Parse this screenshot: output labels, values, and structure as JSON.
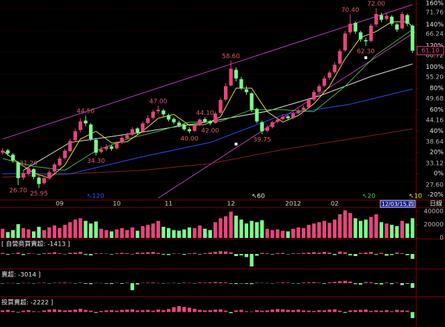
{
  "chart_data": [
    {
      "type": "candlestick",
      "categories": [
        null,
        null,
        null,
        null,
        null,
        null,
        null,
        null,
        null,
        null,
        null,
        "09",
        null,
        null,
        null,
        null,
        null,
        null,
        null,
        null,
        null,
        null,
        "10",
        null,
        null,
        null,
        null,
        null,
        null,
        null,
        null,
        null,
        "11",
        null,
        null,
        null,
        null,
        null,
        null,
        null,
        null,
        null,
        null,
        null,
        "12",
        null,
        null,
        null,
        null,
        null,
        null,
        null,
        null,
        null,
        null,
        null,
        "2012",
        null,
        null,
        null,
        null,
        null,
        null,
        null,
        "02",
        null,
        null,
        null,
        null,
        null,
        null,
        null,
        null,
        null,
        null,
        null,
        null,
        null,
        null,
        null
      ],
      "open": [
        35.0,
        35.6,
        34.5,
        32.5,
        28.6,
        29.6,
        30.8,
        28.6,
        27.2,
        28.4,
        30.2,
        31.8,
        33.6,
        35.4,
        38.2,
        40.8,
        43.2,
        42.2,
        38.3,
        35.2,
        35.9,
        36.6,
        36.1,
        37.6,
        38.7,
        39.6,
        41.2,
        40.4,
        42.6,
        43.9,
        45.6,
        45.8,
        44.6,
        43.6,
        42.7,
        42.2,
        41.0,
        40.6,
        42.1,
        43.6,
        43.0,
        42.6,
        45.2,
        48.6,
        52.2,
        56.2,
        53.8,
        51.2,
        50.2,
        46.2,
        42.8,
        40.6,
        41.6,
        42.9,
        43.6,
        44.3,
        43.9,
        45.1,
        45.9,
        46.6,
        48.6,
        50.6,
        52.1,
        54.2,
        55.6,
        57.8,
        61.2,
        65.8,
        68.2,
        65.8,
        63.8,
        63.6,
        67.8,
        70.2,
        69.2,
        69.8,
        67.8,
        66.8,
        70.2,
        67.5
      ],
      "high": [
        36.2,
        36.0,
        34.9,
        32.8,
        30.5,
        31.2,
        31.0,
        29.0,
        29.0,
        30.6,
        32.5,
        34.0,
        36.0,
        38.6,
        41.2,
        43.8,
        44.5,
        42.6,
        38.8,
        36.5,
        37.2,
        37.0,
        38.0,
        39.4,
        40.2,
        41.6,
        41.5,
        43.0,
        44.6,
        46.0,
        47.0,
        46.2,
        45.0,
        44.0,
        43.2,
        42.5,
        41.5,
        42.4,
        43.8,
        44.1,
        43.4,
        45.5,
        49.0,
        52.8,
        58.6,
        56.8,
        54.4,
        52.0,
        50.5,
        46.5,
        43.2,
        42.1,
        43.2,
        44.0,
        44.8,
        44.6,
        45.5,
        46.3,
        47.1,
        49.0,
        51.0,
        52.6,
        54.6,
        56.0,
        58.2,
        61.6,
        66.2,
        70.4,
        68.6,
        66.2,
        64.4,
        68.0,
        72.0,
        70.8,
        70.9,
        70.2,
        68.2,
        71.0,
        70.6,
        67.8
      ],
      "low": [
        34.5,
        34.2,
        32.4,
        26.7,
        28.0,
        29.2,
        28.2,
        25.95,
        26.8,
        28.0,
        29.8,
        31.5,
        33.2,
        35.0,
        37.8,
        40.2,
        41.8,
        38.0,
        34.3,
        34.8,
        35.4,
        35.5,
        35.8,
        37.2,
        38.3,
        39.2,
        39.6,
        40.1,
        42.1,
        43.5,
        45.0,
        44.2,
        43.0,
        42.3,
        41.5,
        40.6,
        40.0,
        40.3,
        41.8,
        42.6,
        42.0,
        42.4,
        45.0,
        48.2,
        52.0,
        53.2,
        51.0,
        49.8,
        45.4,
        42.5,
        39.75,
        40.2,
        41.2,
        42.5,
        43.2,
        43.3,
        43.6,
        44.8,
        45.4,
        46.3,
        48.2,
        50.2,
        51.8,
        53.6,
        55.2,
        57.4,
        60.8,
        65.2,
        65.4,
        63.4,
        62.3,
        63.2,
        67.2,
        68.4,
        68.8,
        67.5,
        65.9,
        66.5,
        67.4,
        60.5
      ],
      "close": [
        35.5,
        34.8,
        33.0,
        28.5,
        29.8,
        31.0,
        28.8,
        27.0,
        28.5,
        30.0,
        32.0,
        33.5,
        35.5,
        38.0,
        40.5,
        43.0,
        42.5,
        38.5,
        35.0,
        35.8,
        36.5,
        36.0,
        37.5,
        38.8,
        39.5,
        41.0,
        40.2,
        42.5,
        43.8,
        45.5,
        46.0,
        44.8,
        43.5,
        42.8,
        42.0,
        41.0,
        40.5,
        42.0,
        43.5,
        43.0,
        42.5,
        45.0,
        48.5,
        52.0,
        56.5,
        54.0,
        51.5,
        50.5,
        46.0,
        43.0,
        40.5,
        41.5,
        42.8,
        43.5,
        44.2,
        43.8,
        45.0,
        45.8,
        46.5,
        48.5,
        50.5,
        52.0,
        54.0,
        55.5,
        57.5,
        61.0,
        65.5,
        68.0,
        66.0,
        64.0,
        63.5,
        67.5,
        70.5,
        69.0,
        70.0,
        68.0,
        66.5,
        70.5,
        68.0,
        61.1
      ],
      "up_color": "#e8457a",
      "down_color": "#7cfc8c",
      "series": [
        {
          "name": "↖10",
          "color": "#e8e83a",
          "x": [
            0,
            3,
            6,
            9,
            12,
            15,
            18,
            21,
            24,
            27,
            30,
            33,
            36,
            39,
            42,
            45,
            48,
            51,
            54,
            57,
            60,
            63,
            66,
            69,
            72,
            75,
            78,
            79
          ],
          "values": [
            35.5,
            32.5,
            29.8,
            28.5,
            31.8,
            38.5,
            40.5,
            37.5,
            37.8,
            40.5,
            43.8,
            44.8,
            42.0,
            42.2,
            44.2,
            51.5,
            51.5,
            45.5,
            42.8,
            44.5,
            47.5,
            52.0,
            59.0,
            64.5,
            66.0,
            68.5,
            68.5,
            67.2
          ]
        },
        {
          "name": "↖20",
          "color": "#3cc83c",
          "x": [
            0,
            6,
            12,
            18,
            24,
            30,
            36,
            42,
            48,
            54,
            60,
            66,
            72,
            79
          ],
          "values": [
            33.5,
            31.5,
            30.5,
            35.5,
            38.5,
            40.5,
            42.8,
            43.0,
            46.0,
            46.0,
            45.5,
            52.0,
            60.0,
            66.5
          ]
        },
        {
          "name": "↖60",
          "color": "#e8e8e8",
          "x": [
            4,
            13,
            27,
            40,
            51,
            61,
            71,
            79
          ],
          "values": [
            30.5,
            37.6,
            40.3,
            43.0,
            45.6,
            49.5,
            54.5,
            57.7
          ]
        },
        {
          "name": "↖120",
          "color": "#2850ff",
          "x": [
            0,
            13,
            27,
            40,
            54,
            67,
            79
          ],
          "values": [
            29.6,
            29.6,
            34.0,
            37.6,
            44.7,
            47.4,
            51.3
          ]
        },
        {
          "color": "#8a2020",
          "x": [
            0,
            27,
            40,
            54,
            67,
            79
          ],
          "values": [
            28.7,
            30.5,
            32.2,
            35.8,
            38.5,
            41.1
          ]
        }
      ],
      "trendlines": [
        {
          "color": "#c040c0",
          "x": [
            0,
            79
          ],
          "values": [
            38.5,
            72.9
          ]
        },
        {
          "color": "#c040c0",
          "x": [
            30,
            80
          ],
          "values": [
            23.4,
            66.3
          ]
        }
      ],
      "markers": {
        "color": "#ffffff",
        "x": [
          45,
          70
        ],
        "values": [
          37.2,
          59.3
        ]
      },
      "annotations": [
        {
          "value": 70.4,
          "label": "70.40"
        },
        {
          "value": 72,
          "label": "72.00"
        },
        {
          "value": 62.3,
          "label": "62.30"
        },
        {
          "value": 58.6,
          "label": "58.60"
        },
        {
          "value": 47,
          "label": "47.00"
        },
        {
          "value": 44.5,
          "label": "44.50"
        },
        {
          "value": 44.1,
          "label": "44.10"
        },
        {
          "value": 42,
          "label": "42.00"
        },
        {
          "value": 40,
          "label": "40.00"
        },
        {
          "value": 39.75,
          "label": "39.75"
        },
        {
          "value": 34.3,
          "label": "34.30"
        },
        {
          "value": 31.2,
          "label": "31.20"
        },
        {
          "value": 26.7,
          "label": "26.70"
        },
        {
          "value": 25.95,
          "label": "25.95"
        }
      ],
      "annotation_color": "#e05a6a",
      "last_price": {
        "value": 61.1,
        "label": "61.10"
      },
      "cursor_label": "12/03/15,四",
      "ylim": [
        23.33,
        73.18
      ],
      "yticks": [
        {
          "value": 27.6,
          "label": "27.60"
        },
        33.12,
        38.64,
        44.16,
        49.68,
        {
          "value": 55.2,
          "label": "55.20"
        },
        60.72,
        66.24,
        71.76
      ],
      "y2lim": [
        -23.3,
        160
      ],
      "y2ticks": [
        {
          "value": -20,
          "label": "-20%"
        },
        {
          "value": 0,
          "label": "0%"
        },
        {
          "value": 20,
          "label": "20%"
        },
        {
          "value": 40,
          "label": "40%"
        },
        {
          "value": 60,
          "label": "60%"
        },
        {
          "value": 80,
          "label": "80%"
        },
        {
          "value": 100,
          "label": "100%"
        },
        {
          "value": 120,
          "label": "120%"
        },
        {
          "value": 140,
          "label": "140%"
        },
        {
          "value": 160,
          "label": "160%"
        }
      ],
      "grid": true
    },
    {
      "type": "bar",
      "title": "日線",
      "values": [
        14000,
        9000,
        12000,
        21000,
        15000,
        13000,
        10000,
        17000,
        12000,
        16000,
        19000,
        15000,
        20000,
        24000,
        28000,
        30000,
        26000,
        22000,
        25000,
        14000,
        12000,
        10000,
        13000,
        15000,
        12000,
        16000,
        11000,
        18000,
        20000,
        22000,
        26000,
        17000,
        15000,
        12000,
        11000,
        13000,
        16000,
        15000,
        19000,
        14000,
        12000,
        24000,
        30000,
        33000,
        40000,
        34000,
        28000,
        22000,
        26000,
        24000,
        27000,
        14000,
        12000,
        13000,
        11000,
        10000,
        14000,
        16000,
        15000,
        20000,
        22000,
        24000,
        26000,
        23000,
        28000,
        36000,
        42000,
        38000,
        30000,
        26000,
        28000,
        32000,
        36000,
        24000,
        22000,
        20000,
        18000,
        26000,
        22000,
        30000
      ],
      "ylim": [
        0,
        44500
      ],
      "yticks": [
        0,
        20000,
        40000
      ]
    },
    {
      "type": "bar",
      "title": "[ 自營商買賣超: -1413 ]",
      "up_color": "#e8457a",
      "down_color": "#7cfc8c",
      "values": [
        300,
        -200,
        150,
        400,
        -300,
        200,
        100,
        -150,
        250,
        300,
        500,
        200,
        -100,
        350,
        400,
        600,
        -250,
        -400,
        200,
        150,
        100,
        -150,
        200,
        300,
        250,
        -100,
        400,
        350,
        500,
        600,
        300,
        -200,
        -300,
        150,
        100,
        -250,
        200,
        300,
        -150,
        250,
        400,
        600,
        800,
        700,
        500,
        -600,
        -400,
        -900,
        -3600,
        -500,
        300,
        200,
        -150,
        250,
        300,
        -100,
        200,
        150,
        300,
        400,
        500,
        350,
        600,
        400,
        -300,
        700,
        500,
        -400,
        -600,
        300,
        400,
        600,
        -200,
        300,
        -500,
        -300,
        400,
        200,
        -350,
        -1413
      ],
      "ylim": [
        -4000,
        4000
      ]
    },
    {
      "type": "bar",
      "title": "賣超: -3014 ]",
      "up_color": "#e8457a",
      "down_color": "#7cfc8c",
      "values": [
        -200,
        150,
        100,
        -300,
        200,
        150,
        -100,
        200,
        300,
        -150,
        250,
        300,
        400,
        200,
        -200,
        300,
        -400,
        -600,
        200,
        100,
        -300,
        -500,
        200,
        -400,
        300,
        -4500,
        -800,
        200,
        300,
        400,
        150,
        -200,
        100,
        200,
        -150,
        300,
        200,
        -100,
        400,
        300,
        500,
        700,
        600,
        400,
        -300,
        -500,
        -200,
        -400,
        -600,
        300,
        200,
        150,
        -100,
        250,
        400,
        300,
        -200,
        -300,
        400,
        500,
        600,
        300,
        -400,
        500,
        800,
        1200,
        1500,
        1000,
        -600,
        -900,
        700,
        500,
        -500,
        -800,
        400,
        -600,
        300,
        -1200,
        -400,
        -3014
      ],
      "ylim": [
        -8000,
        8000
      ]
    },
    {
      "type": "bar",
      "title": "投買賣超: -2222 ]",
      "up_color": "#e8457a",
      "down_color": "#7cfc8c",
      "values": [
        600,
        800,
        400,
        -200,
        500,
        700,
        300,
        200,
        600,
        900,
        1000,
        800,
        600,
        700,
        900,
        1200,
        800,
        500,
        -300,
        400,
        600,
        700,
        500,
        800,
        900,
        1000,
        600,
        700,
        800,
        500,
        900,
        700,
        1100,
        1800,
        2200,
        1900,
        1600,
        1200,
        800,
        600,
        700,
        900,
        1000,
        500,
        -400,
        600,
        800,
        300,
        200,
        700,
        500,
        600,
        900,
        1100,
        1000,
        800,
        700,
        900,
        600,
        500,
        400,
        700,
        600,
        900,
        1000,
        500,
        -300,
        600,
        700,
        800,
        900,
        400,
        600,
        500,
        700,
        300,
        800,
        600,
        500,
        -2222
      ],
      "ylim": [
        -5000,
        5000
      ]
    }
  ]
}
